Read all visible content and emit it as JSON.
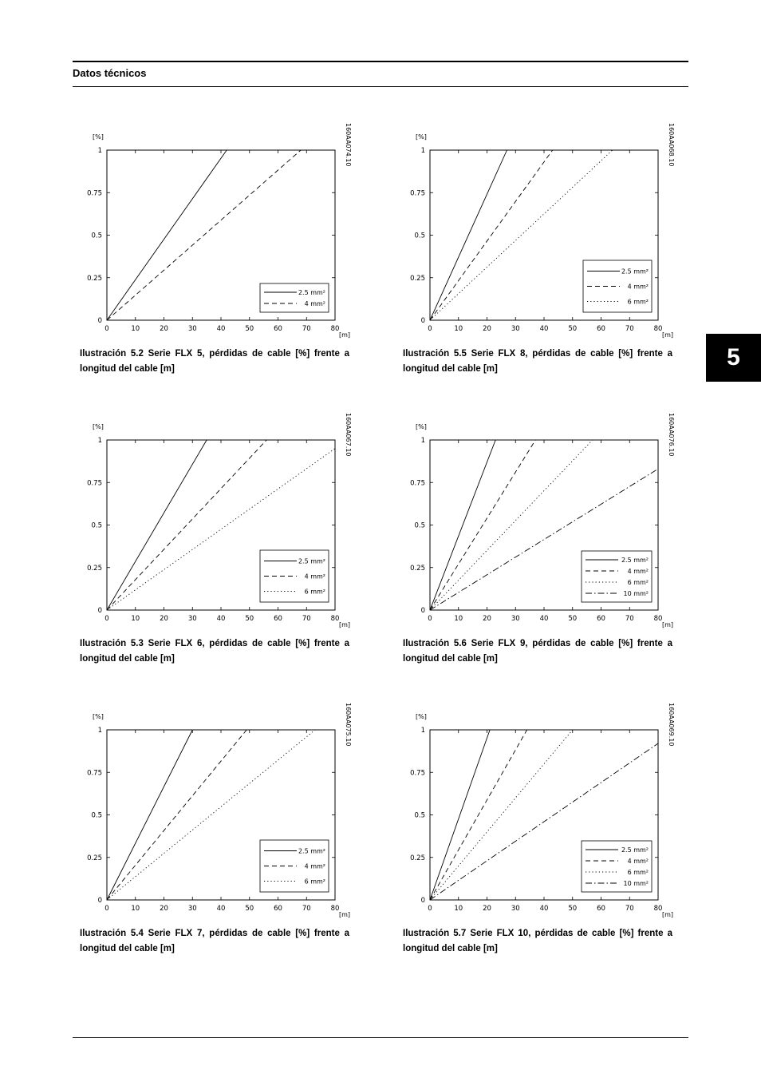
{
  "header": {
    "title": "Datos técnicos"
  },
  "chapter_tab": "5",
  "chart_data": [
    {
      "id": "c52",
      "type": "line",
      "code": "160AA074.10",
      "ylabel": "[%]",
      "xlabel": "[m]",
      "xlim": [
        0,
        80
      ],
      "ylim": [
        0,
        1
      ],
      "xticks": [
        "0",
        "10",
        "20",
        "30",
        "40",
        "50",
        "60",
        "70",
        "80"
      ],
      "yticks": [
        "0",
        "0.25",
        "0.5",
        "0.75",
        "1"
      ],
      "legend": "bottom-right",
      "series": [
        {
          "name": "2.5 mm²",
          "style": "solid",
          "x": [
            0,
            42
          ],
          "y": [
            0,
            1
          ]
        },
        {
          "name": "4 mm²",
          "style": "dashed",
          "x": [
            0,
            68
          ],
          "y": [
            0,
            1
          ]
        }
      ],
      "caption": "Ilustración 5.2 Serie FLX 5, pérdidas de cable [%] frente a longitud del cable [m]"
    },
    {
      "id": "c55",
      "type": "line",
      "code": "160AA068.10",
      "ylabel": "[%]",
      "xlabel": "[m]",
      "xlim": [
        0,
        80
      ],
      "ylim": [
        0,
        1
      ],
      "xticks": [
        "0",
        "10",
        "20",
        "30",
        "40",
        "50",
        "60",
        "70",
        "80"
      ],
      "yticks": [
        "0",
        "0.25",
        "0.5",
        "0.75",
        "1"
      ],
      "legend": "bottom-right",
      "series": [
        {
          "name": "2.5 mm²",
          "style": "solid",
          "x": [
            0,
            27
          ],
          "y": [
            0,
            1
          ]
        },
        {
          "name": "4 mm²",
          "style": "dashed",
          "x": [
            0,
            43
          ],
          "y": [
            0,
            1
          ]
        },
        {
          "name": "6 mm²",
          "style": "dotted",
          "x": [
            0,
            64
          ],
          "y": [
            0,
            1
          ]
        }
      ],
      "caption": "Ilustración 5.5 Serie FLX 8, pérdidas de cable [%] frente a longitud del cable [m]"
    },
    {
      "id": "c53",
      "type": "line",
      "code": "160AA067.10",
      "ylabel": "[%]",
      "xlabel": "[m]",
      "xlim": [
        0,
        80
      ],
      "ylim": [
        0,
        1
      ],
      "xticks": [
        "0",
        "10",
        "20",
        "30",
        "40",
        "50",
        "60",
        "70",
        "80"
      ],
      "yticks": [
        "0",
        "0.25",
        "0.5",
        "0.75",
        "1"
      ],
      "legend": "bottom-right",
      "series": [
        {
          "name": "2.5 mm²",
          "style": "solid",
          "x": [
            0,
            35
          ],
          "y": [
            0,
            1
          ]
        },
        {
          "name": "4 mm²",
          "style": "dashed",
          "x": [
            0,
            56
          ],
          "y": [
            0,
            1
          ]
        },
        {
          "name": "6 mm²",
          "style": "dotted",
          "x": [
            0,
            80
          ],
          "y": [
            0,
            0.95
          ]
        }
      ],
      "caption": "Ilustración 5.3 Serie FLX 6, pérdidas de cable [%] frente a longitud del cable [m]"
    },
    {
      "id": "c56",
      "type": "line",
      "code": "160AA076.10",
      "ylabel": "[%]",
      "xlabel": "[m]",
      "xlim": [
        0,
        80
      ],
      "ylim": [
        0,
        1
      ],
      "xticks": [
        "0",
        "10",
        "20",
        "30",
        "40",
        "50",
        "60",
        "70",
        "80"
      ],
      "yticks": [
        "0",
        "0.25",
        "0.5",
        "0.75",
        "1"
      ],
      "legend": "bottom-right",
      "series": [
        {
          "name": "2.5 mm²",
          "style": "solid",
          "x": [
            0,
            23
          ],
          "y": [
            0,
            1
          ]
        },
        {
          "name": "4 mm²",
          "style": "dashed",
          "x": [
            0,
            37
          ],
          "y": [
            0,
            1
          ]
        },
        {
          "name": "6 mm²",
          "style": "dotted",
          "x": [
            0,
            57
          ],
          "y": [
            0,
            1
          ]
        },
        {
          "name": "10 mm²",
          "style": "dashdot",
          "x": [
            0,
            80
          ],
          "y": [
            0,
            0.83
          ]
        }
      ],
      "caption": "Ilustración 5.6 Serie FLX 9, pérdidas de cable [%] frente a longitud del cable [m]"
    },
    {
      "id": "c54",
      "type": "line",
      "code": "160AA075.10",
      "ylabel": "[%]",
      "xlabel": "[m]",
      "xlim": [
        0,
        80
      ],
      "ylim": [
        0,
        1
      ],
      "xticks": [
        "0",
        "10",
        "20",
        "30",
        "40",
        "50",
        "60",
        "70",
        "80"
      ],
      "yticks": [
        "0",
        "0.25",
        "0.5",
        "0.75",
        "1"
      ],
      "legend": "bottom-right",
      "series": [
        {
          "name": "2.5 mm²",
          "style": "solid",
          "x": [
            0,
            30
          ],
          "y": [
            0,
            1
          ]
        },
        {
          "name": "4 mm²",
          "style": "dashed",
          "x": [
            0,
            49
          ],
          "y": [
            0,
            1
          ]
        },
        {
          "name": "6 mm²",
          "style": "dotted",
          "x": [
            0,
            73
          ],
          "y": [
            0,
            1
          ]
        }
      ],
      "caption": "Ilustración 5.4 Serie FLX 7, pérdidas de cable [%] frente a longitud del cable [m]"
    },
    {
      "id": "c57",
      "type": "line",
      "code": "160AA069.10",
      "ylabel": "[%]",
      "xlabel": "[m]",
      "xlim": [
        0,
        80
      ],
      "ylim": [
        0,
        1
      ],
      "xticks": [
        "0",
        "10",
        "20",
        "30",
        "40",
        "50",
        "60",
        "70",
        "80"
      ],
      "yticks": [
        "0",
        "0.25",
        "0.5",
        "0.75",
        "1"
      ],
      "legend": "bottom-right",
      "series": [
        {
          "name": "2.5 mm²",
          "style": "solid",
          "x": [
            0,
            21
          ],
          "y": [
            0,
            1
          ]
        },
        {
          "name": "4 mm²",
          "style": "dashed",
          "x": [
            0,
            34
          ],
          "y": [
            0,
            1
          ]
        },
        {
          "name": "6 mm²",
          "style": "dotted",
          "x": [
            0,
            50
          ],
          "y": [
            0,
            1
          ]
        },
        {
          "name": "10 mm²",
          "style": "dashdot",
          "x": [
            0,
            80
          ],
          "y": [
            0,
            0.92
          ]
        }
      ],
      "caption": "Ilustración 5.7 Serie FLX 10, pérdidas de cable [%] frente a longitud del cable [m]"
    }
  ]
}
